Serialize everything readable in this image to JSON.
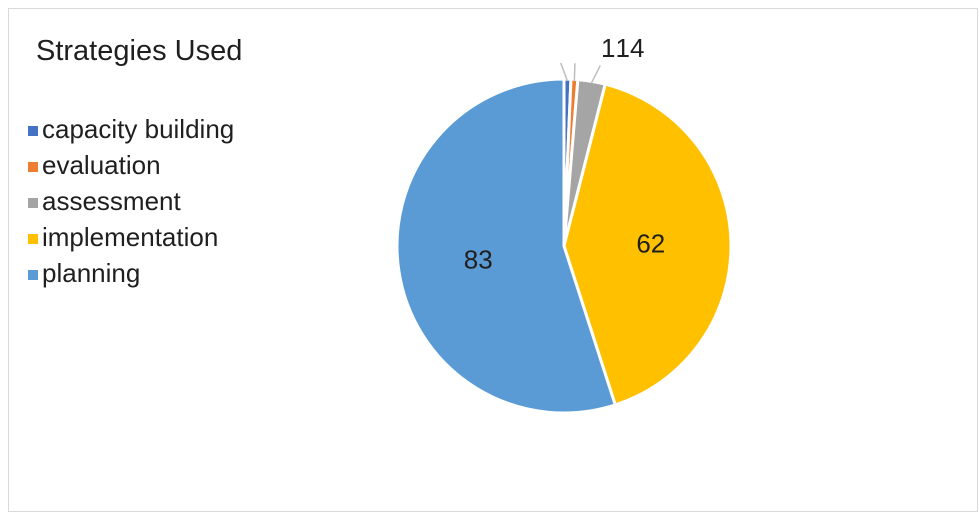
{
  "chart_data": {
    "type": "pie",
    "title": "Strategies Used",
    "legend_position": "left",
    "categories": [
      "capacity building",
      "evaluation",
      "assessment",
      "implementation",
      "planning"
    ],
    "values": [
      1,
      1,
      4,
      62,
      83
    ],
    "data_labels": [
      "1",
      "1",
      "4",
      "62",
      "83"
    ],
    "colors": [
      "#4472c4",
      "#ed7d31",
      "#a5a5a5",
      "#ffc000",
      "#5b9bd5"
    ]
  }
}
